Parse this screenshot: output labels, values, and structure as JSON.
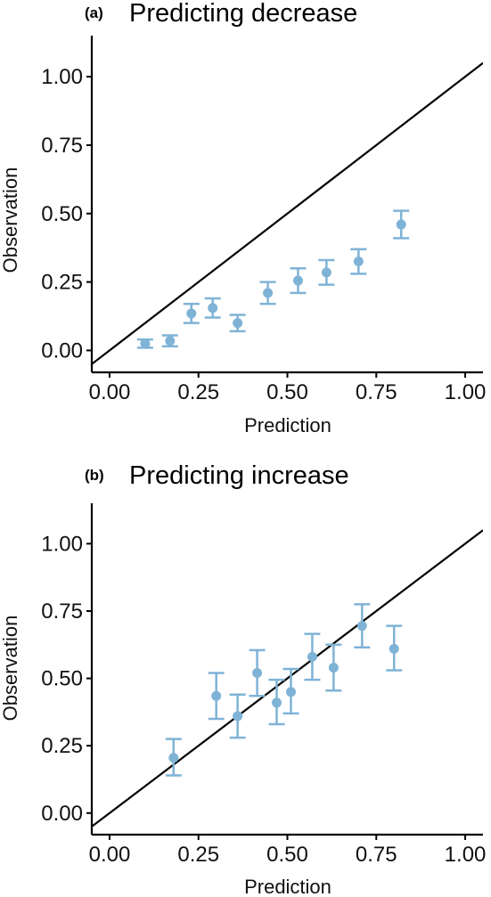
{
  "colors": {
    "point": "#7fb3d6",
    "line": "#000000",
    "axis": "#000000"
  },
  "chart_data": [
    {
      "type": "scatter",
      "panel_tag": "(a)",
      "title": "Predicting decrease",
      "xlabel": "Prediction",
      "ylabel": "Observation",
      "xlim": [
        -0.05,
        1.05
      ],
      "ylim": [
        -0.08,
        1.15
      ],
      "xticks": [
        "0.00",
        "0.25",
        "0.50",
        "0.75",
        "1.00"
      ],
      "yticks": [
        "0.00",
        "0.25",
        "0.50",
        "0.75",
        "1.00"
      ],
      "reference_line": "y = x",
      "grid": false,
      "points": [
        {
          "x": 0.1,
          "y": 0.025,
          "ylow": 0.01,
          "yhigh": 0.04
        },
        {
          "x": 0.17,
          "y": 0.035,
          "ylow": 0.015,
          "yhigh": 0.055
        },
        {
          "x": 0.23,
          "y": 0.135,
          "ylow": 0.1,
          "yhigh": 0.17
        },
        {
          "x": 0.29,
          "y": 0.155,
          "ylow": 0.12,
          "yhigh": 0.19
        },
        {
          "x": 0.36,
          "y": 0.1,
          "ylow": 0.07,
          "yhigh": 0.13
        },
        {
          "x": 0.445,
          "y": 0.21,
          "ylow": 0.17,
          "yhigh": 0.25
        },
        {
          "x": 0.53,
          "y": 0.255,
          "ylow": 0.21,
          "yhigh": 0.3
        },
        {
          "x": 0.61,
          "y": 0.285,
          "ylow": 0.24,
          "yhigh": 0.33
        },
        {
          "x": 0.7,
          "y": 0.325,
          "ylow": 0.28,
          "yhigh": 0.37
        },
        {
          "x": 0.82,
          "y": 0.46,
          "ylow": 0.41,
          "yhigh": 0.51
        }
      ]
    },
    {
      "type": "scatter",
      "panel_tag": "(b)",
      "title": "Predicting increase",
      "xlabel": "Prediction",
      "ylabel": "Observation",
      "xlim": [
        -0.05,
        1.05
      ],
      "ylim": [
        -0.08,
        1.15
      ],
      "xticks": [
        "0.00",
        "0.25",
        "0.50",
        "0.75",
        "1.00"
      ],
      "yticks": [
        "0.00",
        "0.25",
        "0.50",
        "0.75",
        "1.00"
      ],
      "reference_line": "y = x",
      "grid": false,
      "points": [
        {
          "x": 0.18,
          "y": 0.205,
          "ylow": 0.14,
          "yhigh": 0.275
        },
        {
          "x": 0.3,
          "y": 0.435,
          "ylow": 0.35,
          "yhigh": 0.52
        },
        {
          "x": 0.36,
          "y": 0.36,
          "ylow": 0.28,
          "yhigh": 0.44
        },
        {
          "x": 0.415,
          "y": 0.52,
          "ylow": 0.435,
          "yhigh": 0.605
        },
        {
          "x": 0.47,
          "y": 0.41,
          "ylow": 0.33,
          "yhigh": 0.495
        },
        {
          "x": 0.51,
          "y": 0.45,
          "ylow": 0.37,
          "yhigh": 0.535
        },
        {
          "x": 0.57,
          "y": 0.58,
          "ylow": 0.495,
          "yhigh": 0.665
        },
        {
          "x": 0.63,
          "y": 0.54,
          "ylow": 0.455,
          "yhigh": 0.625
        },
        {
          "x": 0.71,
          "y": 0.695,
          "ylow": 0.615,
          "yhigh": 0.775
        },
        {
          "x": 0.8,
          "y": 0.61,
          "ylow": 0.53,
          "yhigh": 0.695
        }
      ]
    }
  ]
}
